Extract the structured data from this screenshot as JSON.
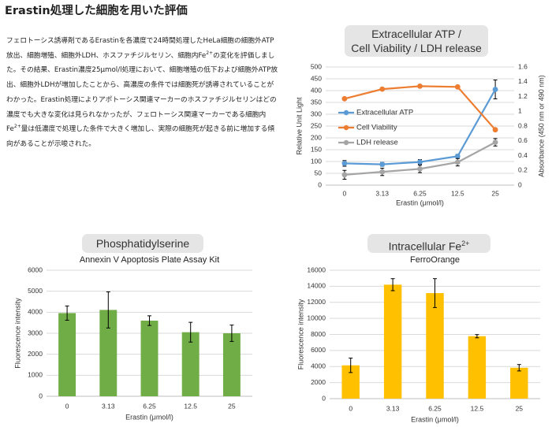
{
  "page": {
    "title": "Erastin処理した細胞を用いた評価",
    "description": {
      "line1": "フェロトーシス誘導剤であるErastinを各濃度で24時間処理したHeLa細胞の細胞外ATP",
      "line2_pre": "放出、細胞増殖、細胞外LDH、ホスファチジルセリン、細胞内Fe",
      "line2_sup": "2+",
      "line2_post": "の変化を評価しまし",
      "line3": "た。その結果、Erastin濃度25μmol/l処理において、細胞増殖の低下および細胞外ATP放",
      "line4": "出、細胞外LDHが増加したことから、高濃度の条件では細胞死が誘導されていることが",
      "line5": "わかった。Erastin処理によりアポトーシス関連マーカーのホスファチジルセリンはどの",
      "line6": "濃度でも大きな変化は見られなかったが、フェロトーシス関連マーカーである細胞内",
      "line7_pre": "Fe",
      "line7_sup": "2+",
      "line7_post": "量は低濃度で処理した条件で大きく増加し、実際の細胞死が起きる前に増加する傾",
      "line8": "向があることが示唆された。"
    }
  },
  "chart_data": [
    {
      "type": "line",
      "title_line1": "Extracellular ATP /",
      "title_line2": "Cell Viability / LDH release",
      "categories": [
        "0",
        "3.13",
        "6.25",
        "12.5",
        "25"
      ],
      "xlabel": "Erastin (μmol/l)",
      "ylabel": "Relative Unit Light",
      "y2label": "Absorbance (450 nm or 490 nm)",
      "ylim": [
        0,
        500
      ],
      "y2lim": [
        0,
        1.6
      ],
      "yticks": [
        "0",
        "50",
        "100",
        "150",
        "200",
        "250",
        "300",
        "350",
        "400",
        "450",
        "500"
      ],
      "y2ticks": [
        "0",
        "0.2",
        "0.4",
        "0.6",
        "0.8",
        "1",
        "1.2",
        "1.4",
        "1.6"
      ],
      "legend_position": "left-middle",
      "grid": true,
      "series": [
        {
          "name": "Extracellular ATP",
          "color": "#5b9bd5",
          "axis": "left",
          "values": [
            92,
            88,
            98,
            122,
            405
          ],
          "errors": [
            12,
            8,
            10,
            8,
            40
          ]
        },
        {
          "name": "Cell Viability",
          "color": "#ed7d31",
          "axis": "right",
          "values": [
            1.17,
            1.3,
            1.34,
            1.33,
            0.75
          ],
          "errors": [
            0,
            0,
            0,
            0,
            0
          ]
        },
        {
          "name": "LDH release",
          "color": "#a5a5a5",
          "axis": "right",
          "values": [
            0.14,
            0.18,
            0.22,
            0.31,
            0.58
          ],
          "errors": [
            0.06,
            0.05,
            0.05,
            0.05,
            0.05
          ]
        }
      ]
    },
    {
      "type": "bar",
      "title": "Phosphatidylserine",
      "subtitle": "Annexin V Apoptosis Plate Assay Kit",
      "categories": [
        "0",
        "3.13",
        "6.25",
        "12.5",
        "25"
      ],
      "values": [
        3960,
        4110,
        3600,
        3050,
        3000
      ],
      "errors": [
        340,
        860,
        230,
        470,
        390
      ],
      "color": "#70ad47",
      "xlabel": "Erastin (μmol/l)",
      "ylabel": "Fluorescence intensity",
      "ylim": [
        0,
        6000
      ],
      "yticks": [
        "0",
        "1000",
        "2000",
        "3000",
        "4000",
        "5000",
        "6000"
      ],
      "grid": true
    },
    {
      "type": "bar",
      "title_pre": "Intracellular Fe",
      "title_sup": "2+",
      "subtitle": "FerroOrange",
      "categories": [
        "0",
        "3.13",
        "6.25",
        "12.5",
        "25"
      ],
      "values": [
        4150,
        14200,
        13150,
        7780,
        3850
      ],
      "errors": [
        900,
        750,
        1800,
        200,
        400
      ],
      "color": "#ffc000",
      "xlabel": "Erastin (μmol/l)",
      "ylabel": "Fluorescence intensity",
      "ylim": [
        0,
        16000
      ],
      "yticks": [
        "0",
        "2000",
        "4000",
        "6000",
        "8000",
        "10000",
        "12000",
        "14000",
        "16000"
      ],
      "grid": true
    }
  ]
}
